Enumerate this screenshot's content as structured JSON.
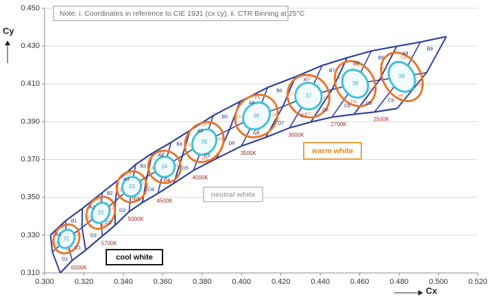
{
  "chart_data": {
    "type": "binning",
    "note": "Note: i. Coordinates in reference to CIE 1931 (cx cy), ii. CTR Binning at 25°C",
    "x_label": "Cx",
    "y_label": "Cy",
    "xlim": [
      0.3,
      0.52
    ],
    "xticks": [
      {
        "value": 0.3,
        "label": "0.300"
      },
      {
        "value": 0.32,
        "label": "0.320"
      },
      {
        "value": 0.34,
        "label": "0.340"
      },
      {
        "value": 0.36,
        "label": "0.360"
      },
      {
        "value": 0.38,
        "label": "0.380"
      },
      {
        "value": 0.4,
        "label": "0.400"
      },
      {
        "value": 0.42,
        "label": "0.420"
      },
      {
        "value": 0.44,
        "label": "0.440"
      },
      {
        "value": 0.46,
        "label": "0.460"
      },
      {
        "value": 0.48,
        "label": "0.480"
      },
      {
        "value": 0.5,
        "label": "0.500"
      },
      {
        "value": 0.52,
        "label": "0.520"
      }
    ],
    "ylim": [
      0.31,
      0.45
    ],
    "yticks": [
      {
        "value": 0.31,
        "label": "0.310"
      },
      {
        "value": 0.33,
        "label": "0.330"
      },
      {
        "value": 0.35,
        "label": "0.350"
      },
      {
        "value": 0.37,
        "label": "0.370"
      },
      {
        "value": 0.39,
        "label": "0.390"
      },
      {
        "value": 0.41,
        "label": "0.410"
      },
      {
        "value": 0.43,
        "label": "0.430"
      },
      {
        "value": 0.45,
        "label": "0.450"
      }
    ],
    "grid": true,
    "boundary": {
      "top": {
        "x": [
          0.303,
          0.3107,
          0.3192,
          0.3293,
          0.3374,
          0.3463,
          0.3547,
          0.3642,
          0.3739,
          0.3856,
          0.3991,
          0.4133,
          0.4273,
          0.4409,
          0.4536,
          0.4659,
          0.4788,
          0.4908,
          0.504
        ],
        "y": [
          0.33,
          0.3376,
          0.3441,
          0.3525,
          0.3592,
          0.3674,
          0.3733,
          0.379,
          0.3854,
          0.3932,
          0.4006,
          0.4081,
          0.4137,
          0.4197,
          0.4238,
          0.4274,
          0.4299,
          0.4321,
          0.435
        ]
      },
      "middle": {
        "x": [
          0.304,
          0.3111,
          0.319,
          0.3285,
          0.336,
          0.3442,
          0.352,
          0.3609,
          0.37,
          0.3811,
          0.394,
          0.4076,
          0.421,
          0.434,
          0.446,
          0.4577,
          0.47,
          0.4814,
          0.494
        ],
        "y": [
          0.321,
          0.328,
          0.334,
          0.3418,
          0.348,
          0.3556,
          0.361,
          0.3661,
          0.372,
          0.3792,
          0.386,
          0.393,
          0.398,
          0.4035,
          0.407,
          0.4101,
          0.412,
          0.4137,
          0.416
        ]
      },
      "bottom": {
        "x": [
          0.308,
          0.314,
          0.3209,
          0.3293,
          0.3358,
          0.3429,
          0.3497,
          0.3575,
          0.3656,
          0.3756,
          0.3874,
          0.4,
          0.4123,
          0.4243,
          0.4352,
          0.4459,
          0.4571,
          0.4675,
          0.479
        ],
        "y": [
          0.31,
          0.3166,
          0.3221,
          0.3295,
          0.3352,
          0.3424,
          0.3473,
          0.352,
          0.3574,
          0.3642,
          0.3706,
          0.3771,
          0.3817,
          0.3867,
          0.3898,
          0.3924,
          0.3939,
          0.3951,
          0.397
        ]
      }
    },
    "bins": [
      {
        "center_label": "31",
        "cct": "6500K",
        "labels": [
          "A1",
          "B1",
          "C1",
          "D1"
        ],
        "sub_labels": [
          "E1",
          "F1",
          "G1",
          "H1"
        ]
      },
      {
        "center_label": "32",
        "cct": "5700K",
        "labels": [
          "A2",
          "B2",
          "C2",
          "D2"
        ],
        "sub_labels": [
          "E2",
          "F2",
          "G2",
          "H2"
        ]
      },
      {
        "center_label": "33",
        "cct": "5000K",
        "labels": [
          "A3",
          "B3",
          "C3",
          "D3"
        ],
        "sub_labels": [
          "E3",
          "F3",
          "G3",
          "H3"
        ]
      },
      {
        "center_label": "34",
        "cct": "4500K",
        "labels": [
          "A4",
          "B4",
          "C4",
          "D4"
        ],
        "sub_labels": [
          "E4",
          "F4",
          "G4",
          "H4"
        ]
      },
      {
        "center_label": "35",
        "cct": "4000K",
        "labels": [
          "A5",
          "B5",
          "C5",
          "D5"
        ],
        "sub_labels": [
          "E5",
          "F5",
          "G5",
          "H5"
        ]
      },
      {
        "center_label": "36",
        "cct": "3500K",
        "labels": [
          "A6",
          "B6",
          "C6",
          "D6"
        ],
        "sub_labels": [
          "E6",
          "F6",
          "G6",
          "H6"
        ]
      },
      {
        "center_label": "37",
        "cct": "3000K",
        "labels": [
          "A7",
          "B7",
          "C7",
          "D7"
        ],
        "sub_labels": [
          "E7",
          "F7",
          "G7",
          "H7"
        ]
      },
      {
        "center_label": "38",
        "cct": "2700K",
        "labels": [
          "A8",
          "B8",
          "C8",
          "D8"
        ],
        "sub_labels": [
          "E8",
          "F8",
          "G8",
          "H8"
        ]
      },
      {
        "center_label": "39",
        "cct": "2500K",
        "labels": [
          "A9",
          "B9",
          "C9",
          "D9"
        ],
        "sub_labels": [
          "E9",
          "F9",
          "G9",
          "H9"
        ]
      }
    ],
    "regions": {
      "cool": "cool white",
      "neutral": "neutral white",
      "warm": "warm white"
    }
  }
}
